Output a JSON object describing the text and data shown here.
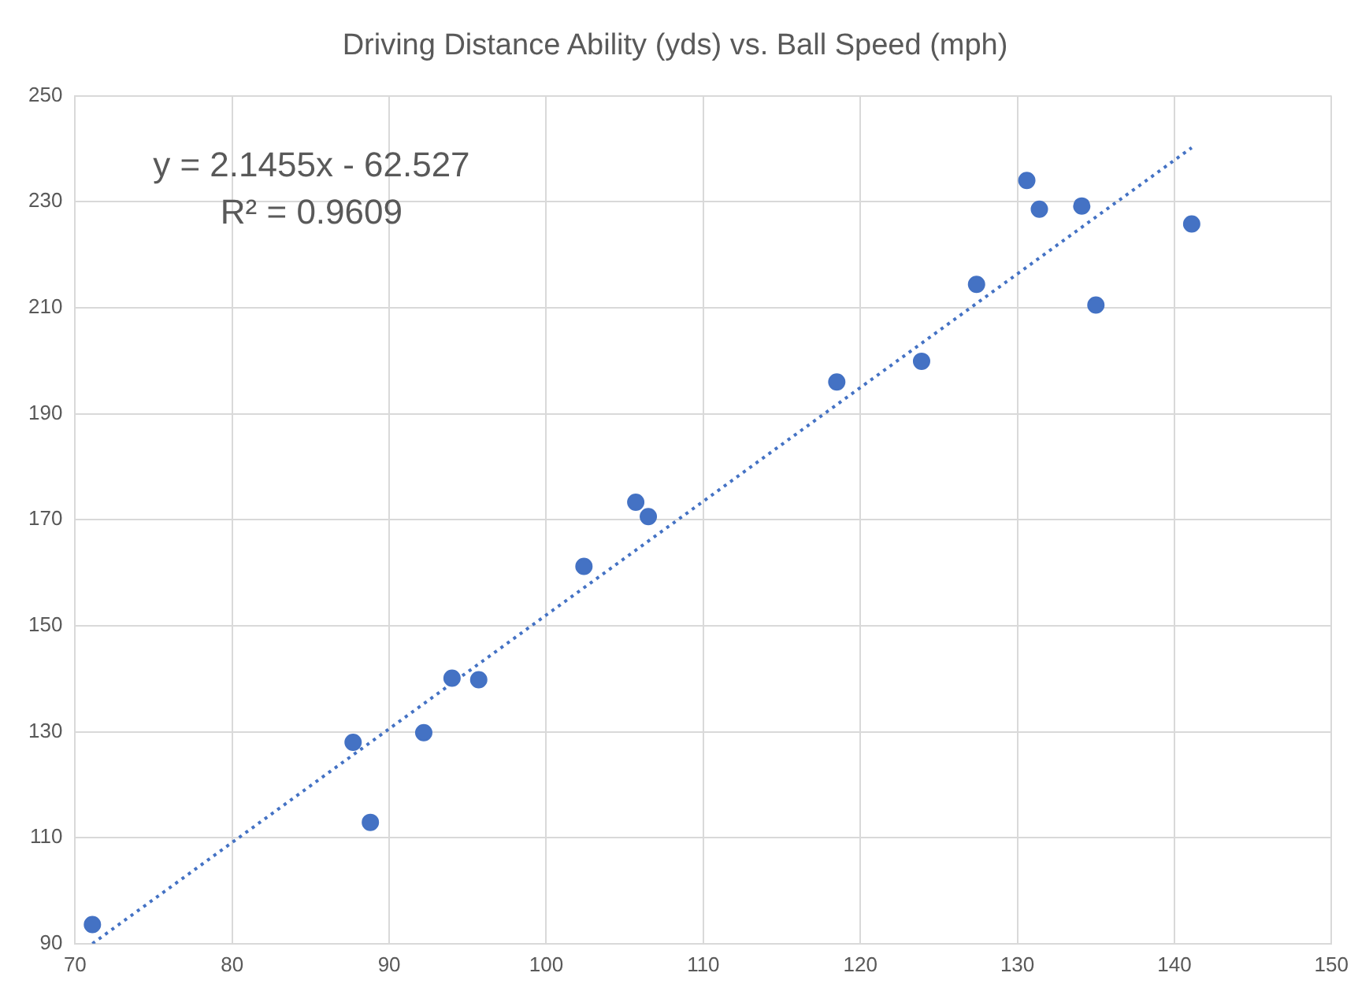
{
  "chart_data": {
    "type": "scatter",
    "title": "Driving Distance Ability (yds) vs. Ball Speed (mph)",
    "series": [
      {
        "type": "scatter",
        "color": "#4472c4",
        "marker": "circle",
        "x": [
          71.1,
          87.7,
          88.8,
          92.2,
          94.0,
          95.7,
          102.4,
          105.7,
          106.5,
          118.5,
          123.9,
          127.4,
          130.6,
          131.4,
          134.1,
          135.0,
          141.1
        ],
        "values": [
          93.6,
          128.0,
          112.9,
          129.8,
          140.1,
          139.8,
          161.2,
          173.3,
          170.6,
          196.0,
          199.9,
          214.4,
          234.0,
          228.6,
          229.2,
          210.5,
          225.8
        ]
      },
      {
        "type": "line",
        "color": "#4472c4",
        "line_style": "dotted",
        "marker": "none",
        "x": [
          71.1,
          141.1
        ],
        "values": [
          90.0,
          240.2
        ]
      }
    ],
    "xlim": [
      70,
      150
    ],
    "xticks": [
      70,
      80,
      90,
      100,
      110,
      120,
      130,
      140,
      150
    ],
    "ylim": [
      90,
      250
    ],
    "yticks": [
      90,
      110,
      130,
      150,
      170,
      190,
      210,
      230,
      250
    ],
    "grid": true,
    "legend": false,
    "annotations": [
      "y = 2.1455x - 62.527",
      "R² = 0.9609"
    ]
  }
}
